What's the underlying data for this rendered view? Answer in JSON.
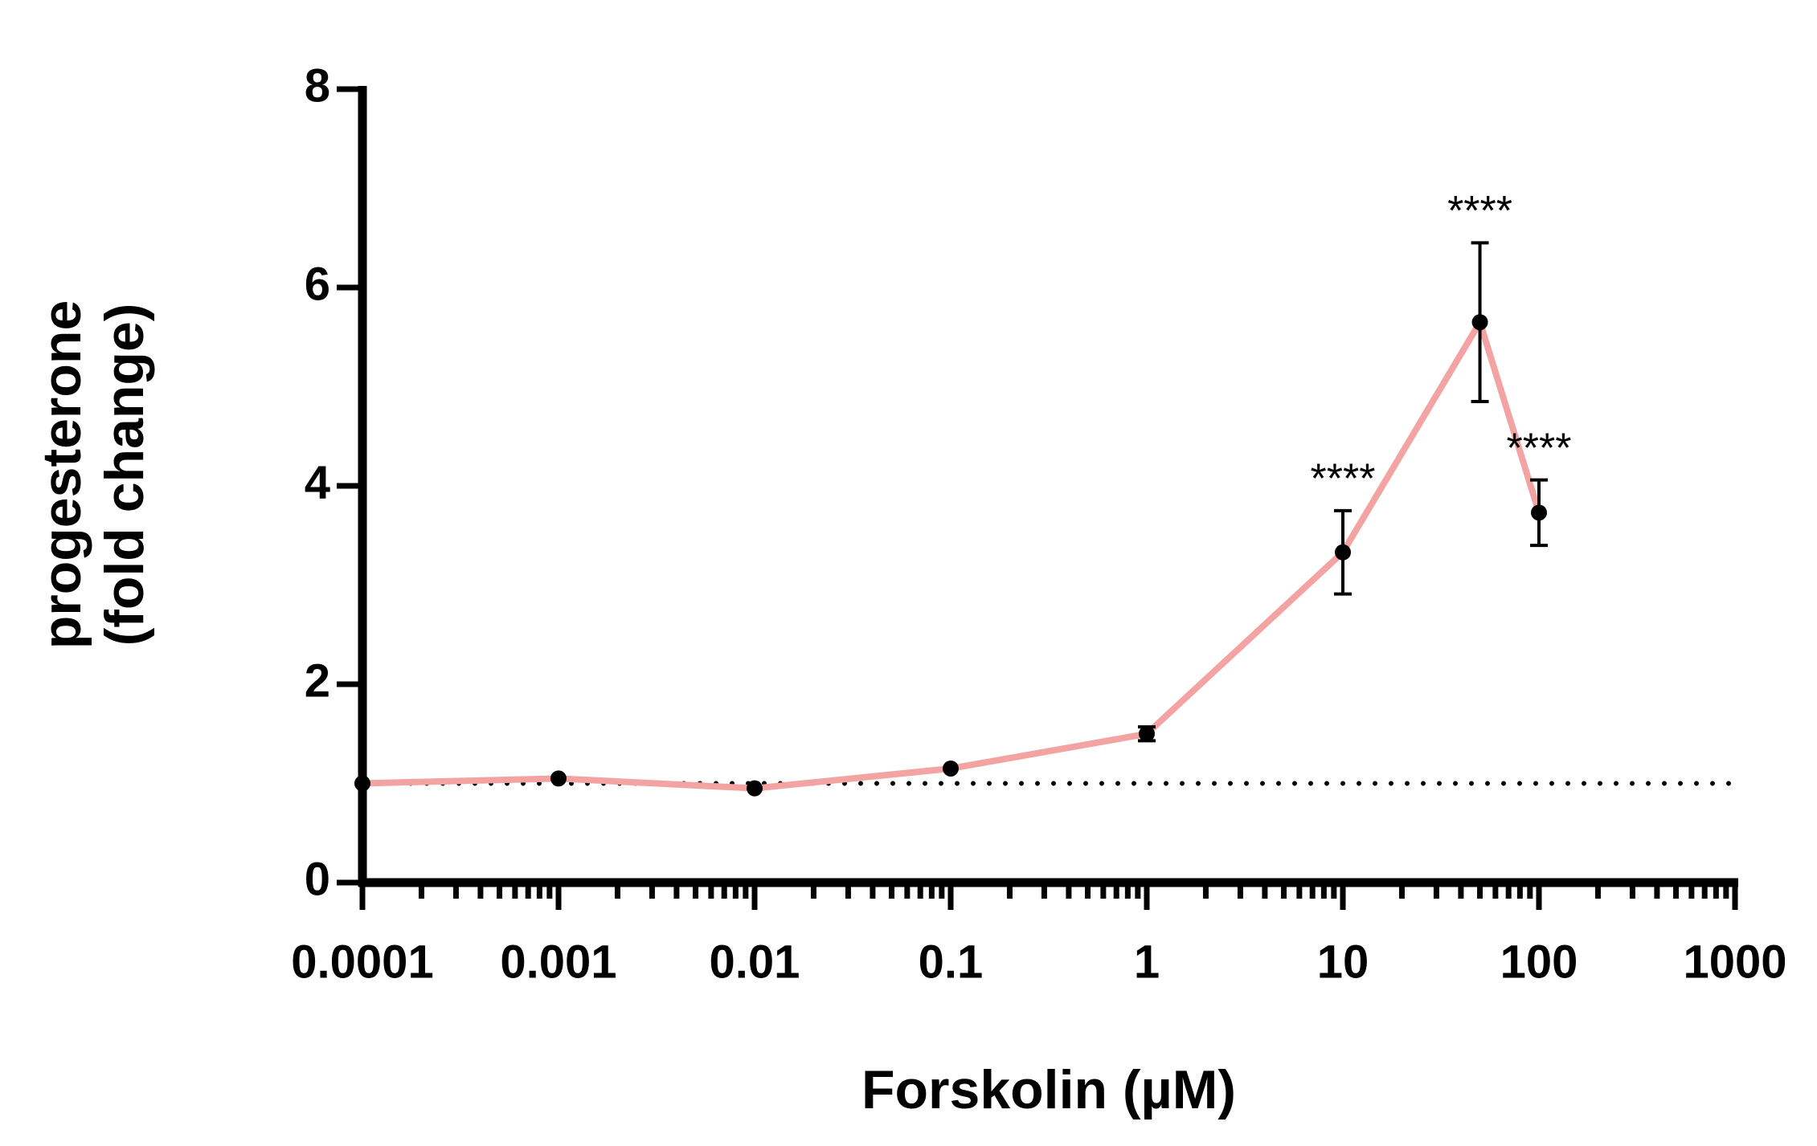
{
  "chart_data": {
    "type": "line",
    "xlabel": "Forskolin (µM)",
    "ylabel": [
      "progesterone",
      "(fold change)"
    ],
    "xscale": "log",
    "xlim": [
      0.0001,
      1000
    ],
    "xticks": [
      0.0001,
      0.001,
      0.01,
      0.1,
      1,
      10,
      100,
      1000
    ],
    "ylim": [
      0,
      8
    ],
    "yticks": [
      0,
      2,
      4,
      6,
      8
    ],
    "reference_line": 1,
    "series": [
      {
        "color": "#f4a3a3",
        "x": [
          0.0001,
          0.001,
          0.01,
          0.1,
          1,
          10,
          50,
          100
        ],
        "values": [
          1.0,
          1.05,
          0.95,
          1.15,
          1.5,
          3.33,
          5.65,
          3.73
        ],
        "errors": [
          0,
          0,
          0,
          0,
          0.07,
          0.42,
          0.8,
          0.33
        ]
      }
    ],
    "annotations": [
      {
        "x": 10,
        "text": "****"
      },
      {
        "x": 50,
        "text": "****"
      },
      {
        "x": 100,
        "text": "****"
      }
    ]
  }
}
